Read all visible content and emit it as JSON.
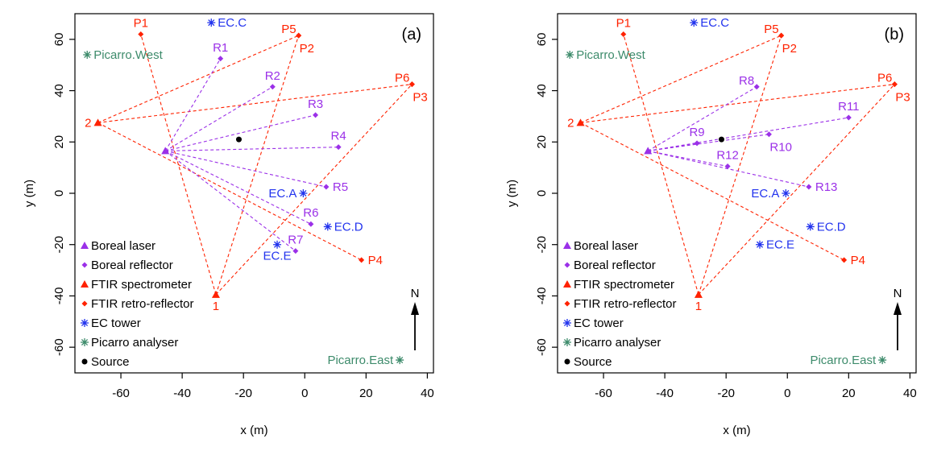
{
  "colors": {
    "boreal": "#9b30e8",
    "ftir": "#ff2200",
    "ec": "#2233ee",
    "picarro": "#3d8b6b",
    "source": "#000000",
    "arrow": "#000000"
  },
  "chart_data": [
    {
      "type": "scatter",
      "panel_label": "(a)",
      "xlabel": "x (m)",
      "ylabel": "y (m)",
      "xlim": [
        -75,
        42
      ],
      "ylim": [
        -70,
        70
      ],
      "xticks": [
        -60,
        -40,
        -20,
        0,
        20,
        40
      ],
      "yticks": [
        -60,
        -40,
        -20,
        0,
        20,
        40,
        60
      ],
      "north_label": "N",
      "legend": [
        {
          "label": "Boreal laser",
          "marker": "triangle",
          "color": "boreal"
        },
        {
          "label": "Boreal reflector",
          "marker": "diamond",
          "color": "boreal"
        },
        {
          "label": "FTIR spectrometer",
          "marker": "triangle",
          "color": "ftir"
        },
        {
          "label": "FTIR retro-reflector",
          "marker": "diamond",
          "color": "ftir"
        },
        {
          "label": "EC tower",
          "marker": "star",
          "color": "ec"
        },
        {
          "label": "Picarro analyser",
          "marker": "star",
          "color": "picarro"
        },
        {
          "label": "Source",
          "marker": "dot",
          "color": "source"
        }
      ],
      "boreal_laser": {
        "x": -45.5,
        "y": 16.5
      },
      "boreal_reflectors": [
        {
          "name": "R1",
          "x": -27.5,
          "y": 52.5,
          "pos": "above"
        },
        {
          "name": "R2",
          "x": -10.5,
          "y": 41.5,
          "pos": "above"
        },
        {
          "name": "R3",
          "x": 3.5,
          "y": 30.5,
          "pos": "above"
        },
        {
          "name": "R4",
          "x": 11,
          "y": 18,
          "pos": "above"
        },
        {
          "name": "R5",
          "x": 7,
          "y": 2.5,
          "pos": "right"
        },
        {
          "name": "R6",
          "x": 2,
          "y": -12,
          "pos": "above"
        },
        {
          "name": "R7",
          "x": -3,
          "y": -22.5,
          "pos": "above"
        }
      ],
      "ftir_spectrometers": [
        {
          "name": "2",
          "x": -67.5,
          "y": 27.5,
          "pos": "left"
        },
        {
          "name": "1",
          "x": -29,
          "y": -39.5,
          "pos": "below"
        }
      ],
      "ftir_reflectors": [
        {
          "name": "P1",
          "x": -53.5,
          "y": 62,
          "pos": "above"
        },
        {
          "name": "P5",
          "x": -2,
          "y": 61.5,
          "pos": "above-left"
        },
        {
          "name": "P2",
          "x": -2,
          "y": 61.5,
          "pos": "below-right"
        },
        {
          "name": "P6",
          "x": 35,
          "y": 42.5,
          "pos": "above-left"
        },
        {
          "name": "P3",
          "x": 35,
          "y": 42.5,
          "pos": "below-right"
        },
        {
          "name": "P4",
          "x": 18.5,
          "y": -26,
          "pos": "right"
        }
      ],
      "ftir_paths": [
        {
          "from": "2",
          "to": "P5"
        },
        {
          "from": "2",
          "to": "P6"
        },
        {
          "from": "2",
          "to": "P4"
        },
        {
          "from": "1",
          "to": "P1"
        },
        {
          "from": "1",
          "to": "P2"
        },
        {
          "from": "1",
          "to": "P3"
        }
      ],
      "ec_towers": [
        {
          "name": "EC.C",
          "x": -30.5,
          "y": 66.5,
          "pos": "right"
        },
        {
          "name": "EC.A",
          "x": -0.5,
          "y": 0,
          "pos": "left"
        },
        {
          "name": "EC.D",
          "x": 7.5,
          "y": -13,
          "pos": "right"
        },
        {
          "name": "EC.E",
          "x": -9,
          "y": -20,
          "pos": "below"
        }
      ],
      "picarro": [
        {
          "name": "Picarro.West",
          "x": -71,
          "y": 54,
          "pos": "right"
        },
        {
          "name": "Picarro.East",
          "x": 31,
          "y": -65,
          "pos": "left"
        }
      ],
      "source": {
        "x": -21.5,
        "y": 21
      }
    },
    {
      "type": "scatter",
      "panel_label": "(b)",
      "xlabel": "x (m)",
      "ylabel": "y (m)",
      "xlim": [
        -75,
        42
      ],
      "ylim": [
        -70,
        70
      ],
      "xticks": [
        -60,
        -40,
        -20,
        0,
        20,
        40
      ],
      "yticks": [
        -60,
        -40,
        -20,
        0,
        20,
        40,
        60
      ],
      "north_label": "N",
      "legend": [
        {
          "label": "Boreal laser",
          "marker": "triangle",
          "color": "boreal"
        },
        {
          "label": "Boreal reflector",
          "marker": "diamond",
          "color": "boreal"
        },
        {
          "label": "FTIR spectrometer",
          "marker": "triangle",
          "color": "ftir"
        },
        {
          "label": "FTIR retro-reflector",
          "marker": "diamond",
          "color": "ftir"
        },
        {
          "label": "EC tower",
          "marker": "star",
          "color": "ec"
        },
        {
          "label": "Picarro analyser",
          "marker": "star",
          "color": "picarro"
        },
        {
          "label": "Source",
          "marker": "dot",
          "color": "source"
        }
      ],
      "boreal_laser": {
        "x": -45.5,
        "y": 16.5
      },
      "boreal_reflectors": [
        {
          "name": "R8",
          "x": -10,
          "y": 41.5,
          "pos": "above-left"
        },
        {
          "name": "R9",
          "x": -29.5,
          "y": 19.5,
          "pos": "above"
        },
        {
          "name": "R10",
          "x": -6,
          "y": 23,
          "pos": "below-right"
        },
        {
          "name": "R11",
          "x": 20,
          "y": 29.5,
          "pos": "above"
        },
        {
          "name": "R12",
          "x": -19.5,
          "y": 10.5,
          "pos": "above"
        },
        {
          "name": "R13",
          "x": 7,
          "y": 2.5,
          "pos": "right"
        }
      ],
      "ftir_spectrometers": [
        {
          "name": "2",
          "x": -67.5,
          "y": 27.5,
          "pos": "left"
        },
        {
          "name": "1",
          "x": -29,
          "y": -39.5,
          "pos": "below"
        }
      ],
      "ftir_reflectors": [
        {
          "name": "P1",
          "x": -53.5,
          "y": 62,
          "pos": "above"
        },
        {
          "name": "P5",
          "x": -2,
          "y": 61.5,
          "pos": "above-left"
        },
        {
          "name": "P2",
          "x": -2,
          "y": 61.5,
          "pos": "below-right"
        },
        {
          "name": "P6",
          "x": 35,
          "y": 42.5,
          "pos": "above-left"
        },
        {
          "name": "P3",
          "x": 35,
          "y": 42.5,
          "pos": "below-right"
        },
        {
          "name": "P4",
          "x": 18.5,
          "y": -26,
          "pos": "right"
        }
      ],
      "ftir_paths": [
        {
          "from": "2",
          "to": "P5"
        },
        {
          "from": "2",
          "to": "P6"
        },
        {
          "from": "2",
          "to": "P4"
        },
        {
          "from": "1",
          "to": "P1"
        },
        {
          "from": "1",
          "to": "P2"
        },
        {
          "from": "1",
          "to": "P3"
        }
      ],
      "ec_towers": [
        {
          "name": "EC.C",
          "x": -30.5,
          "y": 66.5,
          "pos": "right"
        },
        {
          "name": "EC.A",
          "x": -0.5,
          "y": 0,
          "pos": "left"
        },
        {
          "name": "EC.D",
          "x": 7.5,
          "y": -13,
          "pos": "right"
        },
        {
          "name": "EC.E",
          "x": -9,
          "y": -20,
          "pos": "right"
        }
      ],
      "picarro": [
        {
          "name": "Picarro.West",
          "x": -71,
          "y": 54,
          "pos": "right"
        },
        {
          "name": "Picarro.East",
          "x": 31,
          "y": -65,
          "pos": "left"
        }
      ],
      "source": {
        "x": -21.5,
        "y": 21
      }
    }
  ]
}
